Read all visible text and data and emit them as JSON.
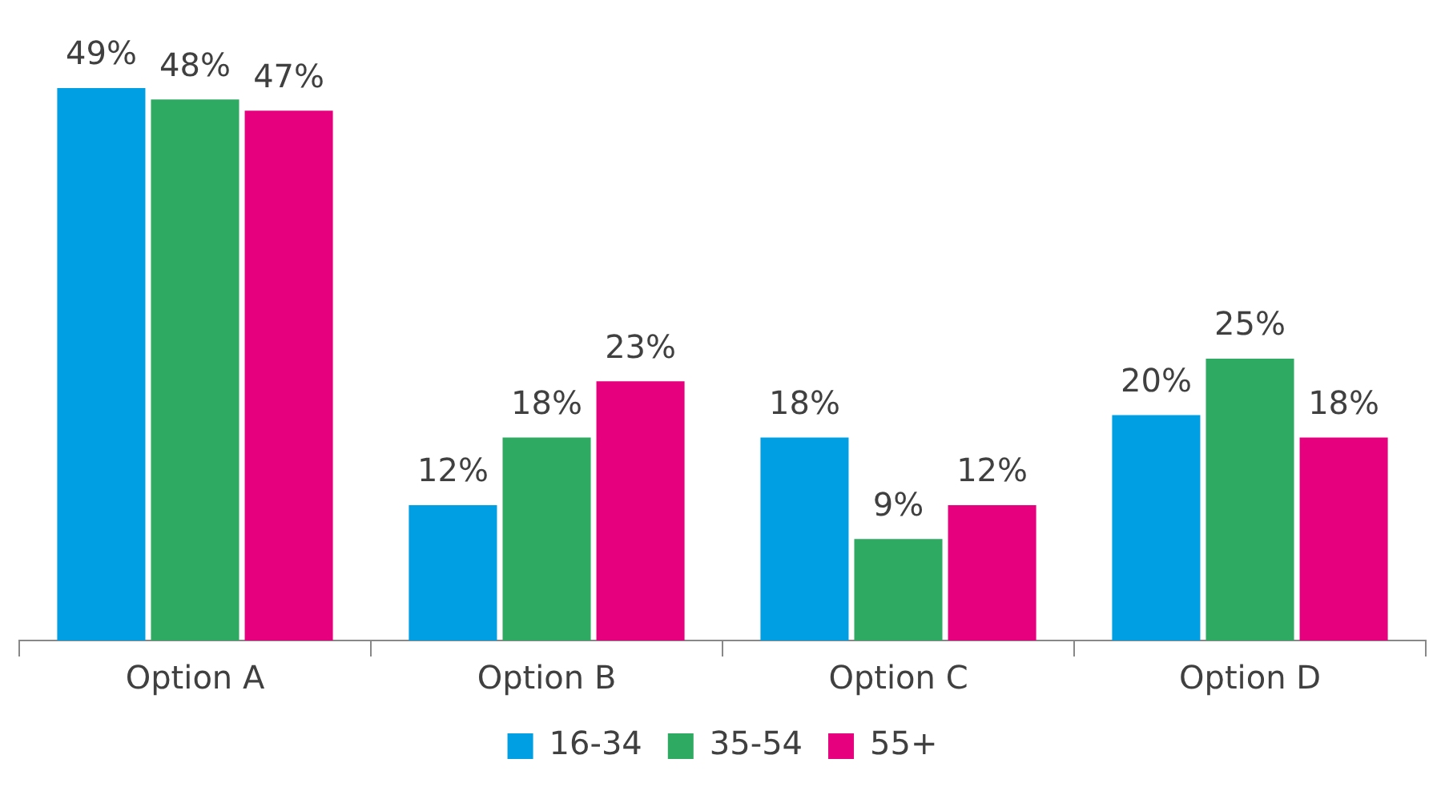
{
  "chart_data": {
    "type": "bar",
    "categories": [
      "Option A",
      "Option B",
      "Option C",
      "Option D"
    ],
    "series": [
      {
        "name": "16-34",
        "color": "#009fe3",
        "values": [
          49,
          12,
          18,
          20
        ],
        "value_labels": [
          "49%",
          "12%",
          "18%",
          "20%"
        ]
      },
      {
        "name": "35-54",
        "color": "#2eaa62",
        "values": [
          48,
          18,
          9,
          25
        ],
        "value_labels": [
          "48%",
          "18%",
          "9%",
          "25%"
        ]
      },
      {
        "name": "55+",
        "color": "#e6007e",
        "values": [
          47,
          23,
          12,
          18
        ],
        "value_labels": [
          "47%",
          "23%",
          "12%",
          "18%"
        ]
      }
    ],
    "legend": "bottom",
    "grid": false
  }
}
